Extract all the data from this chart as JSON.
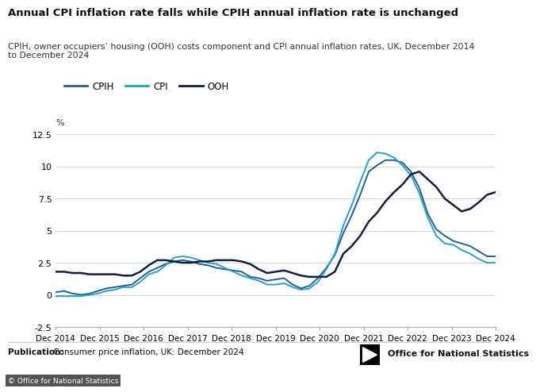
{
  "title": "Annual CPI inflation rate falls while CPIH annual inflation rate is unchanged",
  "subtitle": "CPIH, owner occupiers’ housing (OOH) costs component and CPI annual inflation rates, UK, December 2014\nto December 2024",
  "ylabel": "%",
  "publication_bold": "Publication:",
  "publication_rest": " Consumer price inflation, UK: December 2024",
  "copyright": "© Office for National Statistics",
  "ons_logo": "Office for National Statistics",
  "ylim": [
    -2.5,
    12.5
  ],
  "yticks": [
    -2.5,
    0,
    2.5,
    5,
    7.5,
    10,
    12.5
  ],
  "ytick_labels": [
    "-2.5",
    "0",
    "2.5",
    "5",
    "7.5",
    "10",
    "12.5"
  ],
  "background_color": "#ffffff",
  "grid_color": "#d9d9d9",
  "cpih_color": "#206095",
  "cpi_color": "#27a0cc",
  "ooh_color": "#0f1f3d",
  "legend_labels": [
    "CPIH",
    "CPI",
    "OOH"
  ],
  "x_labels": [
    "Dec 2014",
    "Dec 2015",
    "Dec 2016",
    "Dec 2017",
    "Dec 2018",
    "Dec 2019",
    "Dec 2020",
    "Dec 2021",
    "Dec 2022",
    "Dec 2023",
    "Dec 2024"
  ],
  "cpih_full": [
    0.2,
    0.3,
    0.1,
    0.0,
    0.1,
    0.3,
    0.5,
    0.6,
    0.7,
    0.8,
    1.3,
    1.8,
    2.1,
    2.4,
    2.6,
    2.7,
    2.6,
    2.4,
    2.3,
    2.1,
    2.0,
    1.9,
    1.8,
    1.4,
    1.3,
    1.1,
    1.2,
    1.3,
    0.8,
    0.5,
    0.7,
    1.3,
    2.1,
    3.1,
    4.8,
    6.2,
    7.8,
    9.6,
    10.1,
    10.5,
    10.5,
    10.3,
    9.6,
    8.3,
    6.3,
    5.1,
    4.6,
    4.2,
    4.0,
    3.8,
    3.4,
    3.0,
    3.0
  ],
  "cpi_full": [
    -0.1,
    -0.1,
    -0.1,
    -0.1,
    0.0,
    0.1,
    0.3,
    0.4,
    0.6,
    0.6,
    1.0,
    1.6,
    1.8,
    2.3,
    2.9,
    3.0,
    2.9,
    2.7,
    2.5,
    2.4,
    2.1,
    1.8,
    1.5,
    1.3,
    1.1,
    0.8,
    0.8,
    0.9,
    0.6,
    0.4,
    0.5,
    1.0,
    2.0,
    3.2,
    5.4,
    7.0,
    8.8,
    10.5,
    11.1,
    11.0,
    10.7,
    10.1,
    9.3,
    7.9,
    6.0,
    4.6,
    4.0,
    3.9,
    3.5,
    3.2,
    2.8,
    2.5,
    2.5
  ],
  "ooh_full": [
    1.8,
    1.8,
    1.7,
    1.7,
    1.6,
    1.6,
    1.6,
    1.6,
    1.5,
    1.5,
    1.8,
    2.3,
    2.7,
    2.7,
    2.6,
    2.5,
    2.5,
    2.6,
    2.6,
    2.7,
    2.7,
    2.7,
    2.6,
    2.4,
    2.0,
    1.7,
    1.8,
    1.9,
    1.7,
    1.5,
    1.4,
    1.4,
    1.4,
    1.8,
    3.2,
    3.8,
    4.6,
    5.7,
    6.4,
    7.3,
    8.0,
    8.6,
    9.4,
    9.6,
    9.0,
    8.4,
    7.5,
    7.0,
    6.5,
    6.7,
    7.2,
    7.8,
    8.0
  ]
}
